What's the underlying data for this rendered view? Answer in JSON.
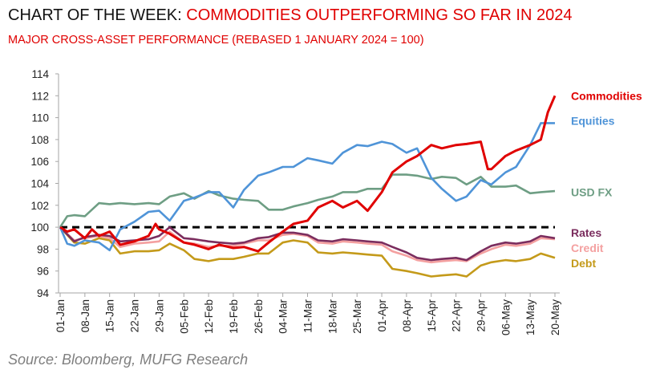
{
  "title_prefix": "CHART OF THE WEEK: ",
  "title_highlight": "COMMODITIES OUTPERFORMING SO FAR IN 2024",
  "subtitle": "MAJOR CROSS-ASSET PERFORMANCE (REBASED 1 JANUARY 2024 = 100)",
  "source": "Source: Bloomberg, MUFG Research",
  "chart_data": {
    "type": "line",
    "title": "COMMODITIES OUTPERFORMING SO FAR IN 2024",
    "xlabel": "",
    "ylabel": "",
    "ylim": [
      94,
      114
    ],
    "yticks": [
      "94",
      "96",
      "98",
      "100",
      "102",
      "104",
      "106",
      "108",
      "110",
      "112",
      "114"
    ],
    "x_unit": "days since 01-Jan-2024",
    "xticks": [
      "01-Jan",
      "08-Jan",
      "15-Jan",
      "22-Jan",
      "29-Jan",
      "05-Feb",
      "12-Feb",
      "19-Feb",
      "26-Feb",
      "04-Mar",
      "11-Mar",
      "18-Mar",
      "25-Mar",
      "01-Apr",
      "08-Apr",
      "15-Apr",
      "22-Apr",
      "29-Apr",
      "06-May",
      "13-May",
      "20-May"
    ],
    "reference_line": {
      "value": 100,
      "style": "dashed",
      "color": "#000000"
    },
    "series": [
      {
        "name": "Debt",
        "color": "#c49a1a",
        "x": [
          0,
          4,
          7,
          11,
          14,
          17,
          21,
          25,
          28,
          31,
          35,
          38,
          42,
          45,
          49,
          52,
          56,
          59,
          63,
          66,
          70,
          73,
          77,
          80,
          84,
          87,
          91,
          94,
          98,
          101,
          105,
          108,
          112,
          115,
          119,
          122,
          126,
          129,
          133,
          136,
          140
        ],
        "values": [
          100,
          98.6,
          98.5,
          99,
          98.8,
          97.6,
          97.8,
          97.8,
          97.9,
          98.5,
          97.9,
          97.1,
          96.9,
          97.1,
          97.1,
          97.3,
          97.6,
          97.6,
          98.6,
          98.8,
          98.6,
          97.7,
          97.6,
          97.7,
          97.6,
          97.5,
          97.4,
          96.2,
          96,
          95.8,
          95.5,
          95.6,
          95.7,
          95.5,
          96.5,
          96.8,
          97,
          96.9,
          97.1,
          97.6,
          97.2
        ]
      },
      {
        "name": "Credit",
        "color": "#f4a0a0",
        "x": [
          0,
          4,
          7,
          11,
          14,
          17,
          21,
          25,
          28,
          31,
          35,
          38,
          42,
          45,
          49,
          52,
          56,
          59,
          63,
          66,
          70,
          73,
          77,
          80,
          84,
          87,
          91,
          94,
          98,
          101,
          105,
          108,
          112,
          115,
          119,
          122,
          126,
          129,
          133,
          136,
          140
        ],
        "values": [
          100,
          98.8,
          99,
          99.2,
          99,
          98.2,
          98.5,
          98.6,
          98.7,
          99.6,
          98.6,
          98.5,
          98.2,
          98.3,
          98.3,
          98.5,
          98.8,
          98.8,
          99.3,
          99.4,
          99.2,
          98.6,
          98.5,
          98.7,
          98.6,
          98.5,
          98.4,
          97.8,
          97.4,
          97,
          96.8,
          96.9,
          97,
          96.9,
          97.6,
          98,
          98.4,
          98.3,
          98.5,
          99,
          98.9
        ]
      },
      {
        "name": "Rates",
        "color": "#7b2d5e",
        "x": [
          0,
          4,
          7,
          11,
          14,
          17,
          21,
          25,
          28,
          31,
          35,
          38,
          42,
          45,
          49,
          52,
          56,
          59,
          63,
          66,
          70,
          73,
          77,
          80,
          84,
          87,
          91,
          94,
          98,
          101,
          105,
          108,
          112,
          115,
          119,
          122,
          126,
          129,
          133,
          136,
          140
        ],
        "values": [
          100,
          98.7,
          99.1,
          99.3,
          99.2,
          98.7,
          98.8,
          98.9,
          99.2,
          100,
          99,
          98.9,
          98.7,
          98.6,
          98.5,
          98.6,
          99,
          99.1,
          99.5,
          99.5,
          99.3,
          98.8,
          98.7,
          98.9,
          98.8,
          98.7,
          98.6,
          98.2,
          97.7,
          97.2,
          97,
          97.1,
          97.2,
          97,
          97.8,
          98.3,
          98.6,
          98.5,
          98.7,
          99.2,
          99
        ]
      },
      {
        "name": "USD FX",
        "color": "#6e9e84",
        "x": [
          0,
          2,
          4,
          7,
          11,
          14,
          17,
          21,
          25,
          28,
          31,
          35,
          38,
          42,
          45,
          49,
          52,
          56,
          59,
          63,
          66,
          70,
          73,
          77,
          80,
          84,
          87,
          91,
          94,
          98,
          101,
          105,
          108,
          112,
          115,
          119,
          122,
          126,
          129,
          133,
          136,
          140
        ],
        "values": [
          100,
          101,
          101.1,
          101,
          102.2,
          102.1,
          102.2,
          102.1,
          102.2,
          102.1,
          102.8,
          103.1,
          102.6,
          103.3,
          102.9,
          102.6,
          102.5,
          102.4,
          101.6,
          101.6,
          101.9,
          102.2,
          102.5,
          102.8,
          103.2,
          103.2,
          103.5,
          103.5,
          104.8,
          104.8,
          104.7,
          104.4,
          104.6,
          104.5,
          103.9,
          104.6,
          103.7,
          103.7,
          103.8,
          103.1,
          103.2,
          103.3
        ]
      },
      {
        "name": "Equities",
        "color": "#4f94d8",
        "x": [
          0,
          2,
          4,
          7,
          11,
          14,
          17,
          21,
          25,
          28,
          31,
          35,
          38,
          42,
          45,
          49,
          52,
          56,
          59,
          63,
          66,
          70,
          73,
          77,
          80,
          84,
          87,
          91,
          94,
          98,
          101,
          105,
          108,
          112,
          115,
          119,
          122,
          126,
          129,
          133,
          136,
          140
        ],
        "values": [
          100,
          98.5,
          98.3,
          98.8,
          98.6,
          97.9,
          99.8,
          100.5,
          101.4,
          101.5,
          100.6,
          102.4,
          102.7,
          103.2,
          103.2,
          101.8,
          103.4,
          104.7,
          105,
          105.5,
          105.5,
          106.3,
          106.1,
          105.8,
          106.8,
          107.5,
          107.4,
          107.8,
          107.6,
          106.8,
          107.2,
          104.5,
          103.5,
          102.4,
          102.8,
          104.3,
          103.9,
          105,
          105.5,
          107.5,
          109.5,
          109.5
        ]
      },
      {
        "name": "Commodities",
        "color": "#e00000",
        "x": [
          0,
          2,
          4,
          7,
          9,
          11,
          14,
          17,
          21,
          25,
          27,
          28,
          31,
          35,
          38,
          42,
          45,
          49,
          52,
          56,
          59,
          63,
          66,
          70,
          73,
          77,
          80,
          84,
          87,
          91,
          94,
          98,
          101,
          105,
          108,
          112,
          115,
          119,
          121,
          122,
          126,
          129,
          133,
          136,
          138,
          140
        ],
        "values": [
          100,
          99.6,
          99.8,
          99,
          99.8,
          99.2,
          99.6,
          98.4,
          98.7,
          99.2,
          100.3,
          99.8,
          99.4,
          98.6,
          98.4,
          98,
          98.4,
          98.1,
          98.2,
          97.8,
          98.6,
          99.6,
          100.3,
          100.6,
          101.8,
          102.4,
          101.8,
          102.4,
          101.5,
          103.2,
          105,
          106,
          106.5,
          107.5,
          107.2,
          107.5,
          107.6,
          107.8,
          105.3,
          105.3,
          106.5,
          107,
          107.5,
          108,
          110.5,
          112
        ]
      }
    ]
  }
}
